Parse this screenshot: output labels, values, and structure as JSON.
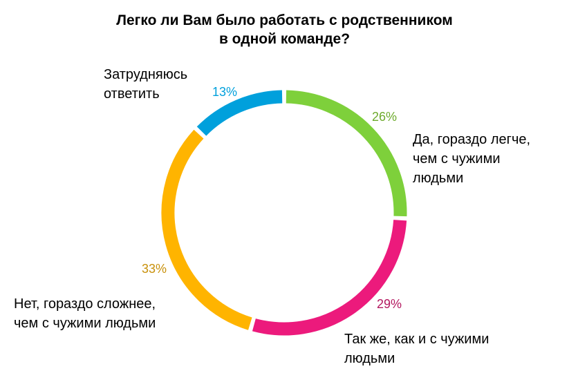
{
  "chart_data": {
    "type": "pie",
    "donut": true,
    "title_lines": [
      "Легко ли Вам было работать  с родственником",
      "в одной команде?"
    ],
    "slices": [
      {
        "label_lines": [
          "Да, гораздо легче,",
          "чем с чужими",
          "людьми"
        ],
        "value": 26,
        "value_label": "26%",
        "color": "#7ED03B",
        "label_color": "#6DAA2C"
      },
      {
        "label_lines": [
          "Так же, как и с чужими",
          "людьми"
        ],
        "value": 29,
        "value_label": "29%",
        "color": "#EC1A7C",
        "label_color": "#B3175F"
      },
      {
        "label_lines": [
          "Нет, гораздо сложнее,",
          "чем с чужими людьми"
        ],
        "value": 33,
        "value_label": "33%",
        "color": "#FFB400",
        "label_color": "#C8900A"
      },
      {
        "label_lines": [
          "Затрудняюсь",
          "ответить"
        ],
        "value": 13,
        "value_label": "13%",
        "color": "#00A0DC",
        "label_color": "#00A0DC"
      }
    ]
  }
}
